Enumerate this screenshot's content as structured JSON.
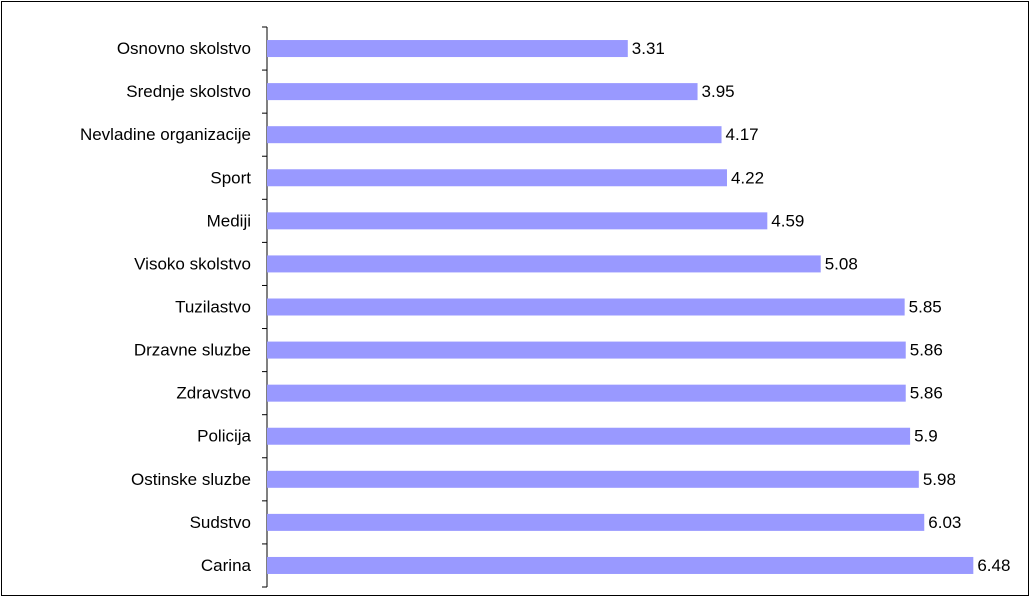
{
  "chart_data": {
    "type": "bar",
    "orientation": "horizontal",
    "categories": [
      "Osnovno skolstvo",
      "Srednje skolstvo",
      "Nevladine organizacije",
      "Sport",
      "Mediji",
      "Visoko skolstvo",
      "Tuzilastvo",
      "Drzavne sluzbe",
      "Zdravstvo",
      "Policija",
      "Ostinske sluzbe",
      "Sudstvo",
      "Carina"
    ],
    "values": [
      3.31,
      3.95,
      4.17,
      4.22,
      4.59,
      5.08,
      5.85,
      5.86,
      5.86,
      5.9,
      5.98,
      6.03,
      6.48
    ],
    "color": "#9999ff",
    "xlim": [
      0,
      7
    ],
    "grid": false
  }
}
